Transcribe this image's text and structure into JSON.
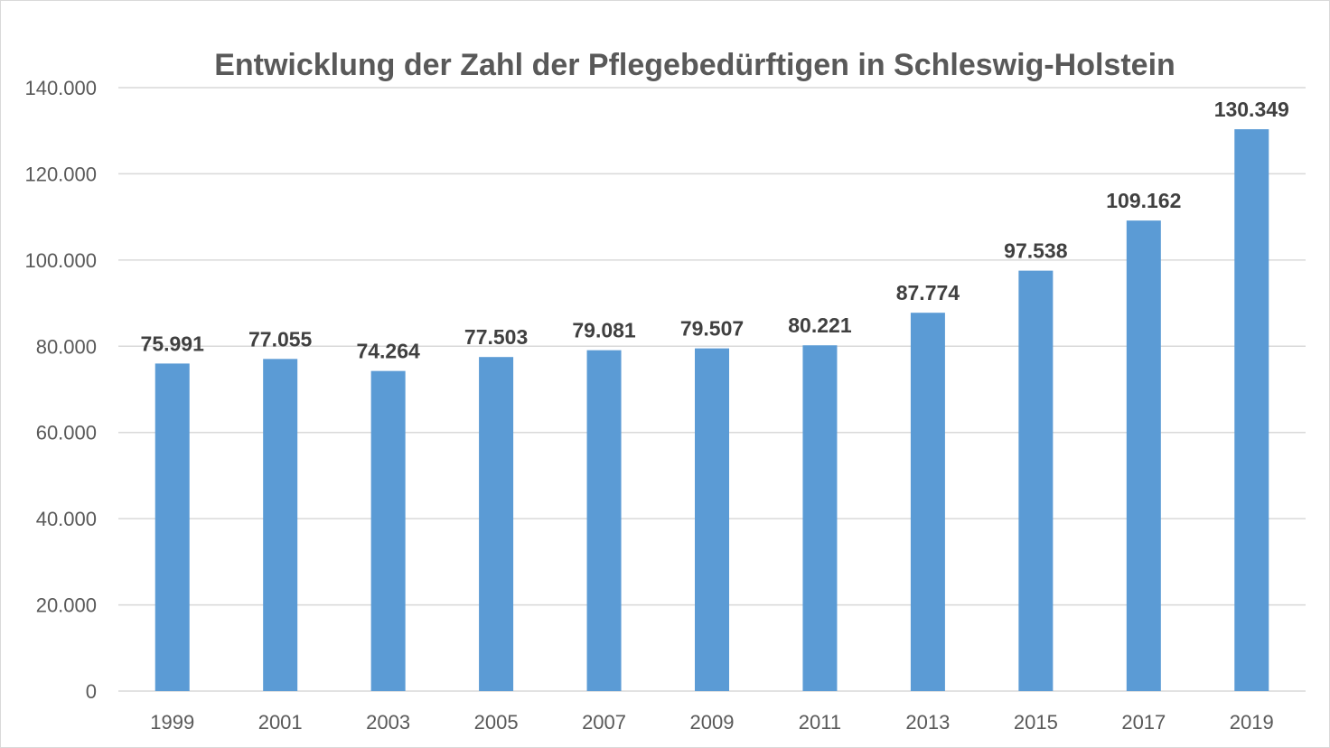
{
  "chart_data": {
    "type": "bar",
    "title": "Entwicklung der Zahl der Pflegebedürftigen in Schleswig-Holstein",
    "xlabel": "",
    "ylabel": "",
    "categories": [
      "1999",
      "2001",
      "2003",
      "2005",
      "2007",
      "2009",
      "2011",
      "2013",
      "2015",
      "2017",
      "2019"
    ],
    "values": [
      75991,
      77055,
      74264,
      77503,
      79081,
      79507,
      80221,
      87774,
      97538,
      109162,
      130349
    ],
    "data_labels": [
      "75.991",
      "77.055",
      "74.264",
      "77.503",
      "79.081",
      "79.507",
      "80.221",
      "87.774",
      "97.538",
      "109.162",
      "130.349"
    ],
    "ylim": [
      0,
      140000
    ],
    "y_ticks": [
      0,
      20000,
      40000,
      60000,
      80000,
      100000,
      120000,
      140000
    ],
    "y_tick_labels": [
      "0",
      "20.000",
      "40.000",
      "60.000",
      "80.000",
      "100.000",
      "120.000",
      "140.000"
    ],
    "grid": true,
    "legend": "none",
    "bar_color": "#5b9bd5"
  }
}
